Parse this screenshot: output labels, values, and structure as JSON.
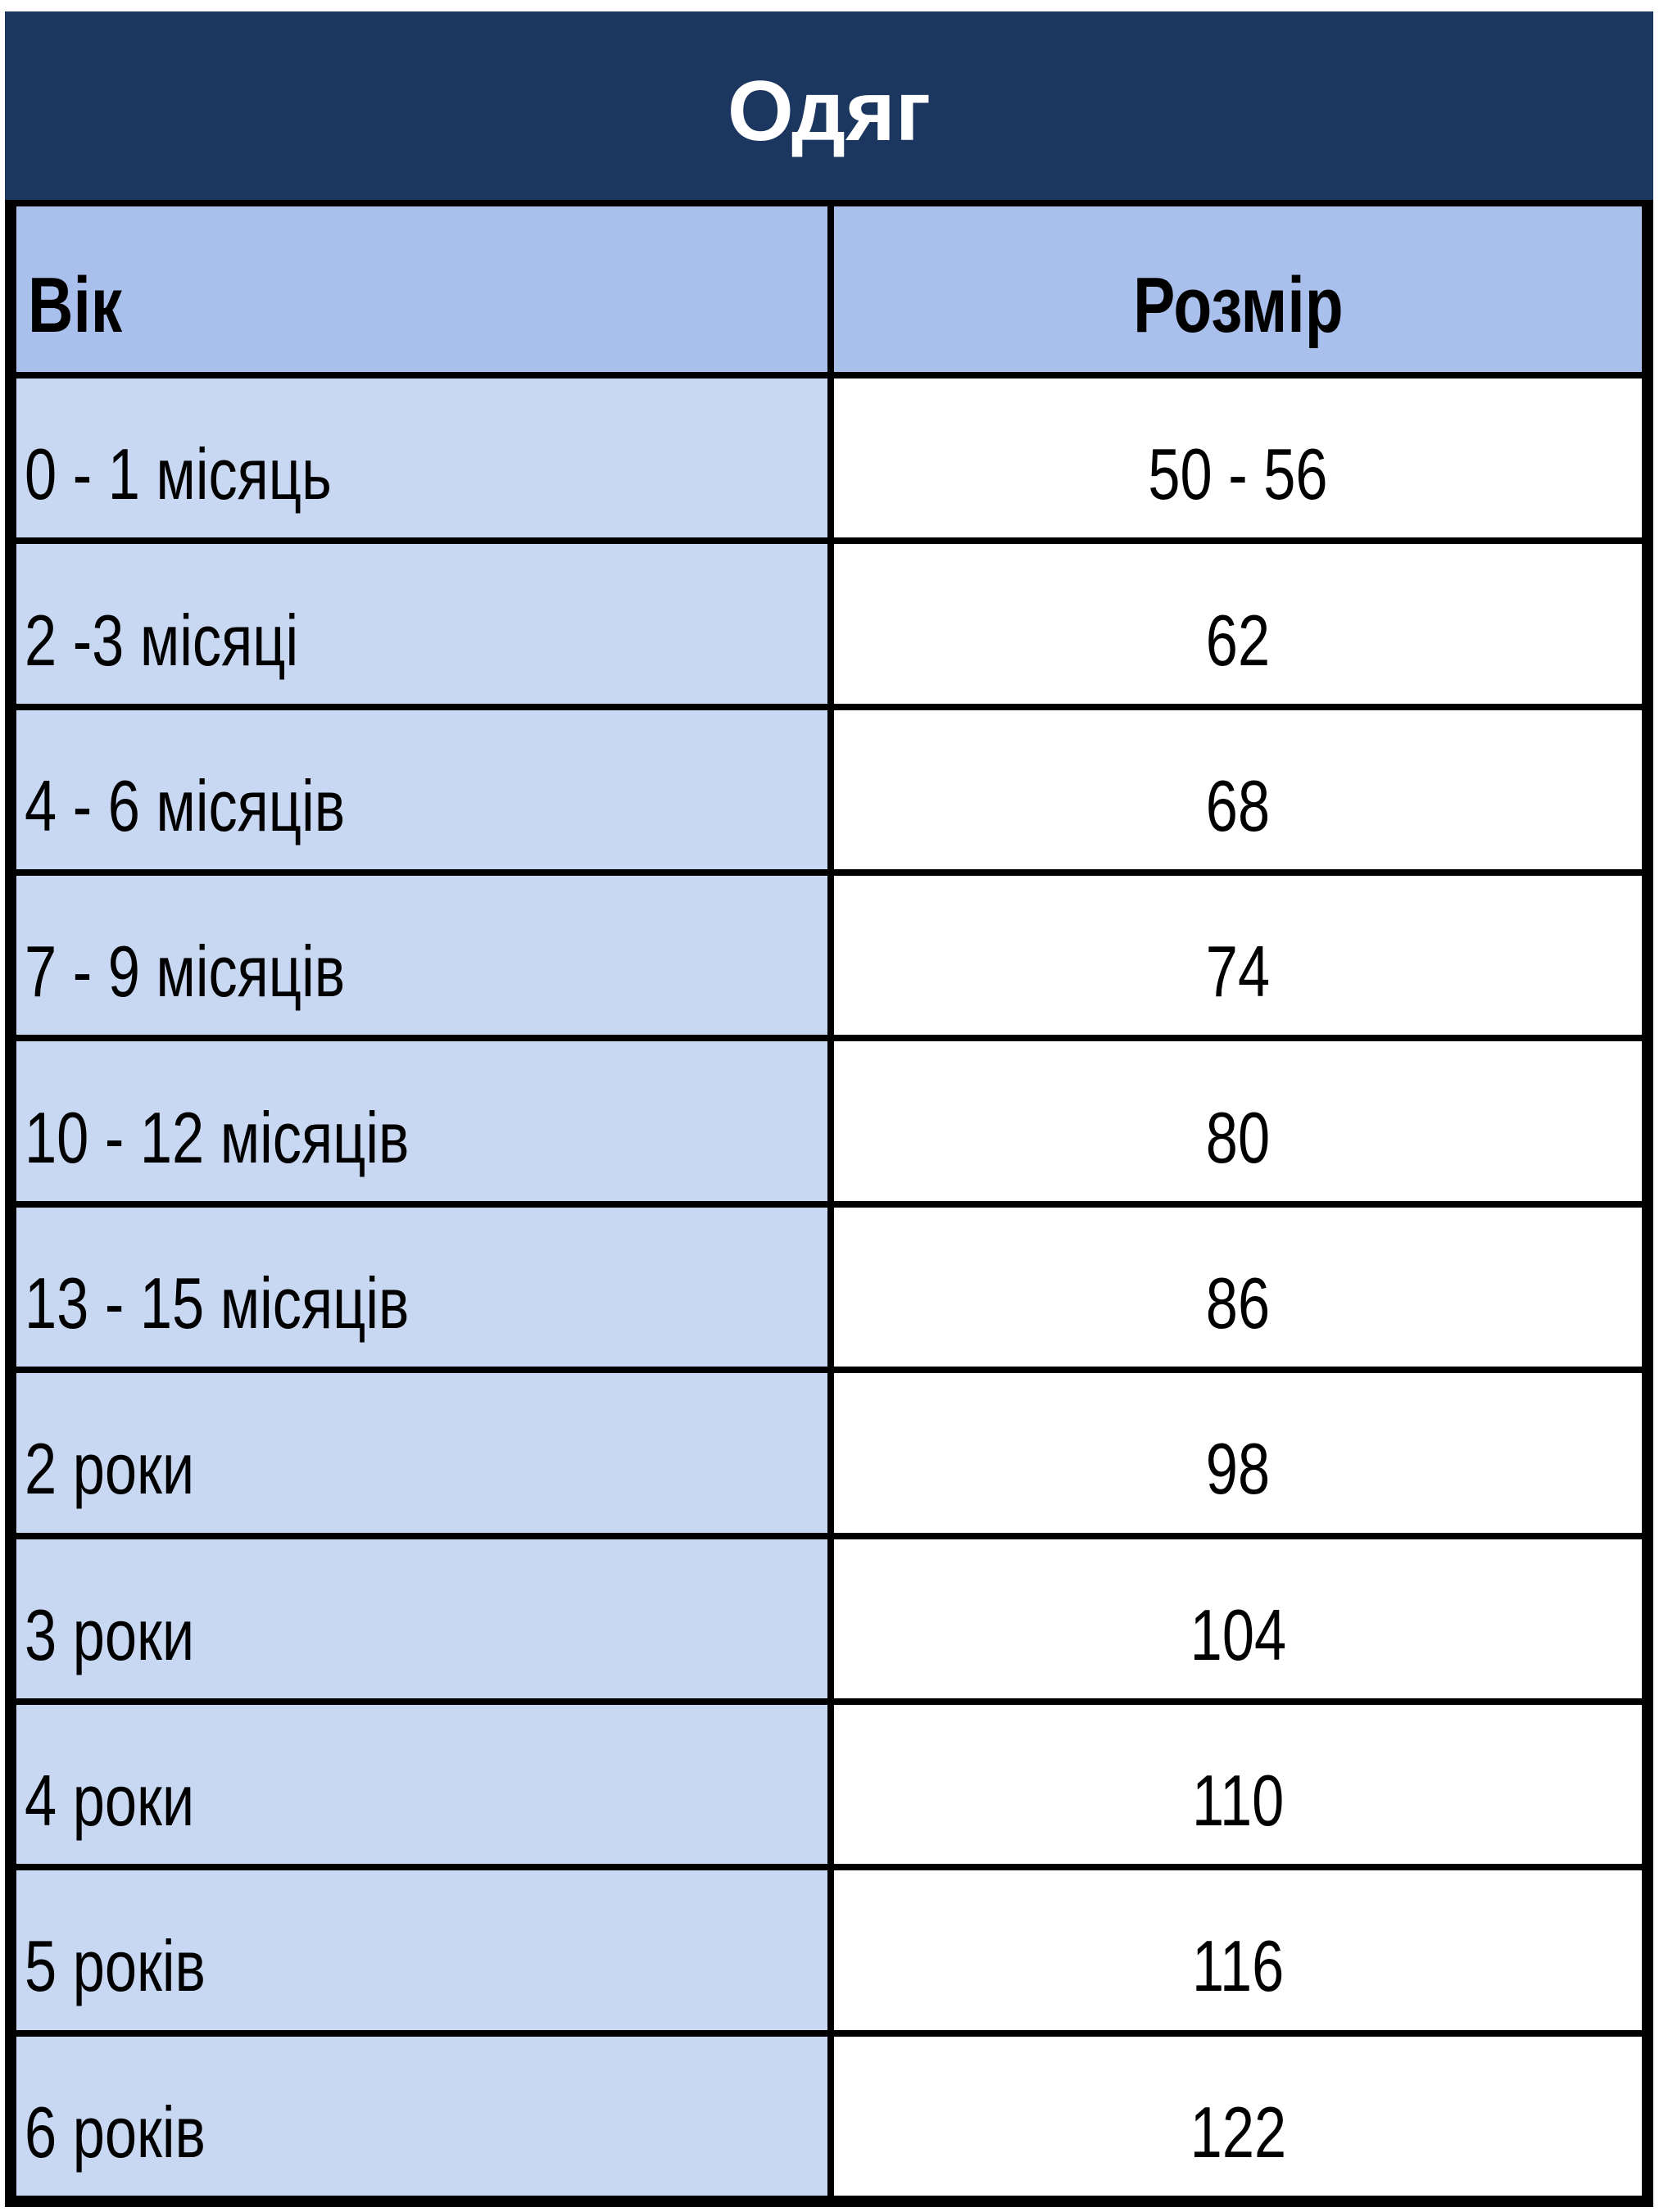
{
  "title": "Одяг",
  "columns": [
    "Вік",
    "Розмір"
  ],
  "rows": [
    {
      "age": "0 - 1 місяць",
      "size": "50 - 56"
    },
    {
      "age": "2 -3 місяці",
      "size": "62"
    },
    {
      "age": "4 - 6 місяців",
      "size": "68"
    },
    {
      "age": "7 - 9 місяців",
      "size": "74"
    },
    {
      "age": "10 - 12 місяців",
      "size": "80"
    },
    {
      "age": "13 - 15 місяців",
      "size": "86"
    },
    {
      "age": "2 роки",
      "size": "98"
    },
    {
      "age": "3 роки",
      "size": "104"
    },
    {
      "age": "4 роки",
      "size": "110"
    },
    {
      "age": "5 років",
      "size": "116"
    },
    {
      "age": "6 років",
      "size": "122"
    }
  ],
  "colors": {
    "title_bg": "#1b365f",
    "header_bg": "#aac0ec",
    "age_bg": "#c9d8f2",
    "size_bg": "#ffffff"
  }
}
